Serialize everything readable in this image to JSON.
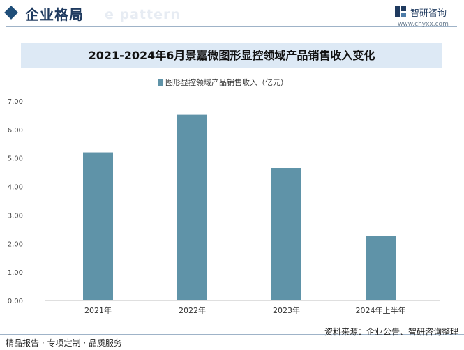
{
  "header": {
    "section_title": "企业格局",
    "watermark_text": "e pattern",
    "logo_name": "智研咨询",
    "logo_url": "www.chyxx.com"
  },
  "chart_data": {
    "type": "bar",
    "title": "2021-2024年6月景嘉微图形显控领域产品销售收入变化",
    "categories": [
      "2021年",
      "2022年",
      "2023年",
      "2024年上半年"
    ],
    "series": [
      {
        "name": "图形显控领域产品销售收入（亿元）",
        "values": [
          5.2,
          6.52,
          4.65,
          2.27
        ]
      }
    ],
    "ylim": [
      0,
      7
    ],
    "yticks": [
      "0.00",
      "1.00",
      "2.00",
      "3.00",
      "4.00",
      "5.00",
      "6.00",
      "7.00"
    ],
    "xlabel": "",
    "ylabel": "",
    "legend_position": "top",
    "grid": false,
    "bar_color": "#5f93a8"
  },
  "footer": {
    "left": "精品报告 · 专项定制 · 品质服务",
    "source": "资料来源：企业公告、智研咨询整理"
  }
}
